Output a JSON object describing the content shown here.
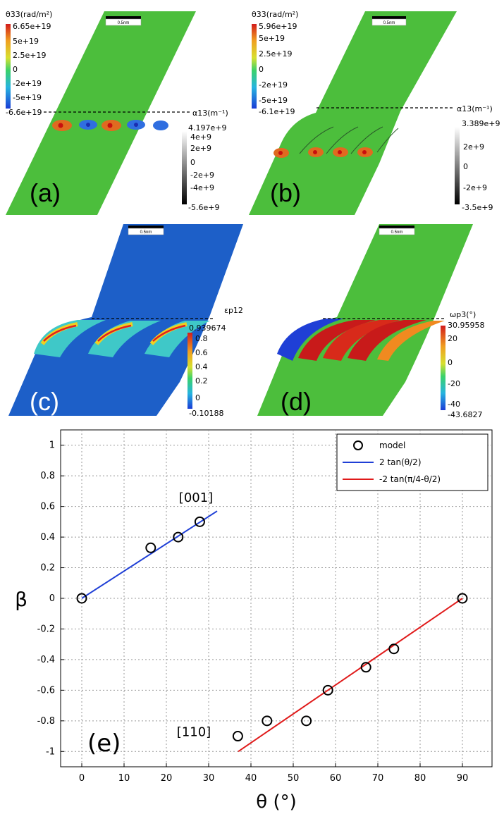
{
  "panels": {
    "a": {
      "label": "(a)",
      "scale_bar": "0.5nm",
      "cbar_primary_title": "θ33(rad/m²)",
      "cbar_primary_ticks": [
        "6.65e+19",
        "5e+19",
        "2.5e+19",
        "0",
        "-2e+19",
        "-5e+19",
        "-6.6e+19"
      ],
      "cbar_secondary_title": "α13(m⁻¹)",
      "cbar_secondary_ticks": [
        "4.197e+9",
        "4e+9",
        "2e+9",
        "0",
        "-2e+9",
        "-4e+9",
        "-5.6e+9"
      ]
    },
    "b": {
      "label": "(b)",
      "scale_bar": "0.5nm",
      "cbar_primary_title": "θ33(rad/m²)",
      "cbar_primary_ticks": [
        "5.96e+19",
        "5e+19",
        "2.5e+19",
        "0",
        "-2e+19",
        "-5e+19",
        "-6.1e+19"
      ],
      "cbar_secondary_title": "α13(m⁻¹)",
      "cbar_secondary_ticks": [
        "3.389e+9",
        "2e+9",
        "0",
        "-2e+9",
        "-3.5e+9"
      ]
    },
    "c": {
      "label": "(c)",
      "scale_bar": "0.5nm",
      "cbar_title": "εp12",
      "cbar_ticks": [
        "0.939674",
        "0.8",
        "0.6",
        "0.4",
        "0.2",
        "0",
        "-0.10188"
      ]
    },
    "d": {
      "label": "(d)",
      "scale_bar": "0.5nm",
      "cbar_title": "ωp3(°)",
      "cbar_ticks": [
        "30.95958",
        "20",
        "0",
        "-20",
        "-40",
        "-43.6827"
      ]
    }
  },
  "chart_data": {
    "type": "scatter",
    "panel_label": "(e)",
    "xlabel": "θ (°)",
    "ylabel": "β",
    "xlim": [
      -5,
      97
    ],
    "ylim": [
      -1.1,
      1.1
    ],
    "xticks": [
      0,
      10,
      20,
      30,
      40,
      50,
      60,
      70,
      80,
      90
    ],
    "yticks": [
      -1,
      -0.8,
      -0.6,
      -0.4,
      -0.2,
      0,
      0.2,
      0.4,
      0.6,
      0.8,
      1
    ],
    "grid": true,
    "legend_position": "top-right",
    "series": [
      {
        "name": "model",
        "kind": "markers",
        "x": [
          0,
          16.3,
          22.8,
          27.9,
          36.9,
          43.8,
          53.1,
          58.2,
          67.2,
          73.8,
          90
        ],
        "y": [
          0,
          0.33,
          0.4,
          0.5,
          -0.9,
          -0.8,
          -0.8,
          -0.6,
          -0.45,
          -0.33,
          0
        ],
        "color": "#000000"
      },
      {
        "name": "2 tan(θ/2)",
        "kind": "line",
        "x": [
          0,
          32
        ],
        "y": [
          0,
          0.57
        ],
        "color": "#1f3fd6"
      },
      {
        "name": "-2 tan(π/4-θ/2)",
        "kind": "line",
        "x": [
          37,
          90
        ],
        "y": [
          -1,
          0
        ],
        "color": "#e01a1a"
      }
    ],
    "annotations": [
      {
        "text": "[001]",
        "x": 27,
        "y": 0.63
      },
      {
        "text": "[110]",
        "x": 26.5,
        "y": -0.9
      }
    ]
  }
}
